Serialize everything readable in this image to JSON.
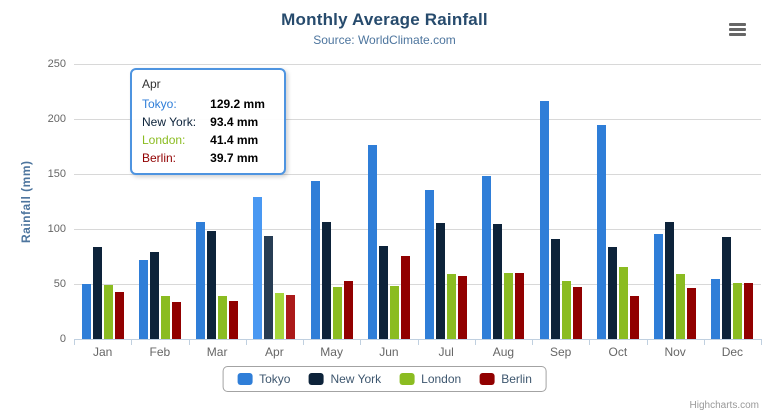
{
  "chart": {
    "title": "Monthly Average Rainfall",
    "subtitle": "Source: WorldClimate.com",
    "credits": "Highcharts.com"
  },
  "chart_data": {
    "type": "bar",
    "title": "Monthly Average Rainfall",
    "subtitle": "Source: WorldClimate.com",
    "xlabel": "",
    "ylabel": "Rainfall (mm)",
    "ylim": [
      0,
      250
    ],
    "yticks": [
      0,
      50,
      100,
      150,
      200,
      250
    ],
    "grid": true,
    "legend_position": "bottom",
    "categories": [
      "Jan",
      "Feb",
      "Mar",
      "Apr",
      "May",
      "Jun",
      "Jul",
      "Aug",
      "Sep",
      "Oct",
      "Nov",
      "Dec"
    ],
    "hovered_category": "Apr",
    "hovered_index": 3,
    "series": [
      {
        "name": "Tokyo",
        "color": "#2f7ed8",
        "hover_color": "#4998f2",
        "values": [
          49.9,
          71.5,
          106.4,
          129.2,
          144.0,
          176.0,
          135.6,
          148.5,
          216.4,
          194.1,
          95.6,
          54.4
        ]
      },
      {
        "name": "New York",
        "color": "#0d233a",
        "hover_color": "#273d54",
        "values": [
          83.6,
          78.8,
          98.5,
          93.4,
          106.0,
          84.5,
          105.0,
          104.3,
          91.2,
          83.5,
          106.6,
          92.3
        ]
      },
      {
        "name": "London",
        "color": "#8bbc21",
        "hover_color": "#a5d63b",
        "values": [
          48.9,
          38.8,
          39.3,
          41.4,
          47.0,
          48.3,
          59.0,
          59.6,
          52.4,
          65.2,
          59.3,
          51.2
        ]
      },
      {
        "name": "Berlin",
        "color": "#910000",
        "hover_color": "#ab1a1a",
        "values": [
          42.4,
          33.2,
          34.5,
          39.7,
          52.6,
          75.5,
          57.4,
          60.4,
          47.6,
          39.1,
          46.8,
          51.1
        ]
      }
    ]
  },
  "tooltip": {
    "header": "Apr",
    "border_color": "#4e94e0",
    "rows": [
      {
        "label": "Tokyo:",
        "value": "129.2 mm",
        "color": "#2f7ed8"
      },
      {
        "label": "New York:",
        "value": "93.4 mm",
        "color": "#0d233a"
      },
      {
        "label": "London:",
        "value": "41.4 mm",
        "color": "#8bbc21"
      },
      {
        "label": "Berlin:",
        "value": "39.7 mm",
        "color": "#910000"
      }
    ]
  }
}
